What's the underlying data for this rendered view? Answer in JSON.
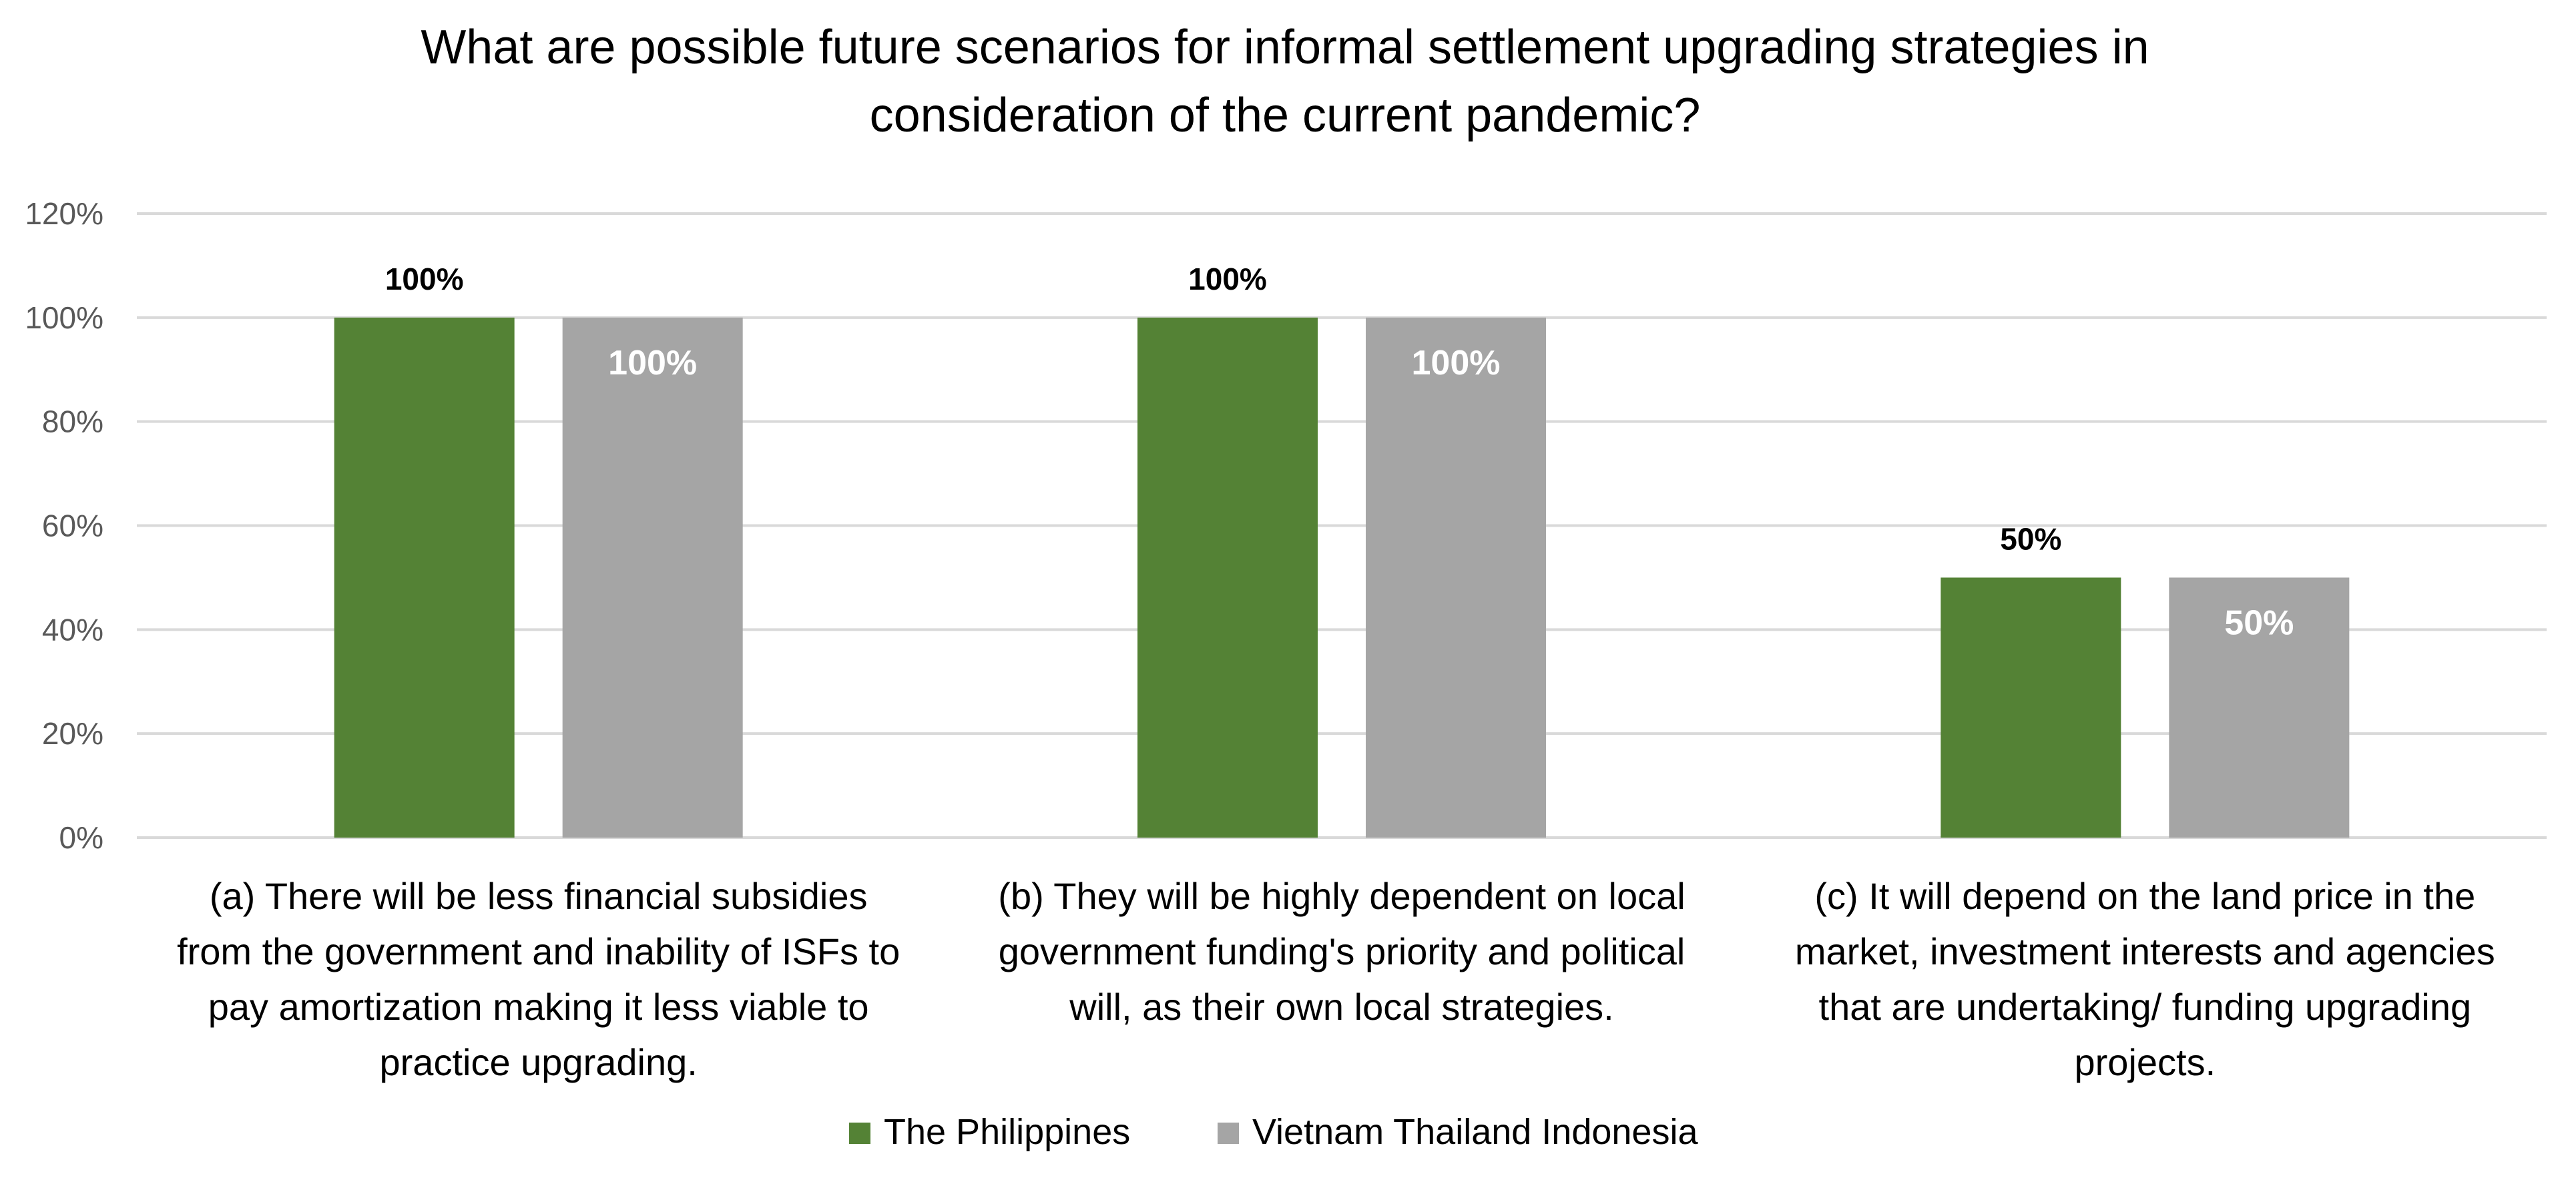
{
  "chart_data": {
    "type": "bar",
    "title_lines": [
      "What are possible future scenarios for informal settlement upgrading strategies in",
      "consideration of the current pandemic?"
    ],
    "categories": [
      [
        "(a) There will be less financial subsidies",
        "from the government and inability of ISFs to",
        "pay amortization making it less viable to",
        "practice upgrading."
      ],
      [
        "(b) They will be highly dependent on local",
        "government funding's priority and political",
        "will, as their own local strategies."
      ],
      [
        "(c) It will depend on the land price in the",
        "market, investment interests and agencies",
        "that are undertaking/ funding upgrading",
        "projects."
      ]
    ],
    "series": [
      {
        "name": "The Philippines",
        "values": [
          100,
          100,
          50
        ],
        "color": "#548235",
        "data_labels": [
          "100%",
          "100%",
          "50%"
        ]
      },
      {
        "name": "Vietnam Thailand Indonesia",
        "values": [
          100,
          100,
          50
        ],
        "color": "#a5a5a5",
        "data_labels": [
          "100%",
          "100%",
          "50%"
        ]
      }
    ],
    "y_ticks": [
      "0%",
      "20%",
      "40%",
      "60%",
      "80%",
      "100%",
      "120%"
    ],
    "ylim": [
      0,
      120
    ],
    "grid": true,
    "gridline_color": "#d9d9d9",
    "legend_position": "bottom"
  }
}
